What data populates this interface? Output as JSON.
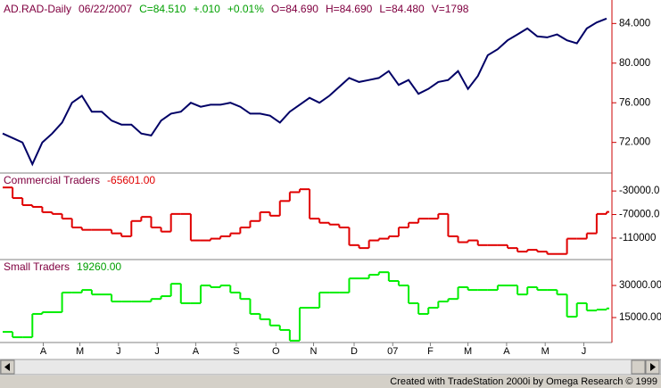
{
  "chart_data": [
    {
      "type": "line",
      "title": "AD.RAD-Daily",
      "color": "#000066",
      "header": [
        {
          "text": "06/22/2007",
          "color": "#800040"
        },
        {
          "text": "C=84.510",
          "color": "#00a000"
        },
        {
          "text": "+.010",
          "color": "#00a000"
        },
        {
          "text": "+0.01%",
          "color": "#00a000"
        },
        {
          "text": "O=84.690",
          "color": "#800040"
        },
        {
          "text": "H=84.690",
          "color": "#800040"
        },
        {
          "text": "L=84.480",
          "color": "#800040"
        },
        {
          "text": "V=1798",
          "color": "#800040"
        }
      ],
      "xlim": [
        0,
        61
      ],
      "values": [
        72.9,
        72.45,
        72.0,
        69.8,
        72.0,
        72.9,
        74.0,
        76.0,
        76.7,
        75.1,
        75.1,
        74.2,
        73.8,
        73.8,
        72.9,
        72.7,
        74.2,
        74.9,
        75.1,
        76.0,
        75.6,
        75.8,
        75.8,
        76.0,
        75.6,
        74.9,
        74.9,
        74.7,
        74.0,
        75.1,
        75.8,
        76.5,
        76.0,
        76.7,
        77.6,
        78.5,
        78.1,
        78.3,
        78.5,
        79.2,
        77.8,
        78.3,
        76.9,
        77.4,
        78.1,
        78.3,
        79.2,
        77.4,
        78.7,
        80.8,
        81.4,
        82.3,
        82.9,
        83.5,
        82.7,
        82.6,
        82.9,
        82.3,
        82.0,
        83.5,
        84.1,
        84.5
      ],
      "ylim": [
        69,
        86.1
      ],
      "yticks": [
        {
          "value": 84,
          "label": "84.000"
        },
        {
          "value": 80,
          "label": "80.000"
        },
        {
          "value": 76,
          "label": "76.000"
        },
        {
          "value": 72,
          "label": "72.000"
        }
      ]
    },
    {
      "type": "step",
      "title": "Commercial Traders",
      "last_value_label": "-65601.00",
      "color": "#e00000",
      "xlim": [
        0,
        61
      ],
      "values": [
        -24000,
        -42000,
        -54000,
        -57000,
        -66000,
        -69000,
        -77000,
        -92000,
        -96000,
        -96000,
        -96000,
        -102000,
        -107000,
        -81000,
        -74000,
        -92000,
        -99000,
        -69000,
        -69000,
        -114000,
        -114000,
        -111000,
        -107000,
        -102000,
        -92000,
        -81000,
        -66000,
        -72000,
        -47000,
        -32000,
        -27000,
        -77000,
        -84000,
        -87000,
        -92000,
        -122000,
        -127000,
        -114000,
        -111000,
        -107000,
        -92000,
        -84000,
        -77000,
        -77000,
        -69000,
        -107000,
        -117000,
        -114000,
        -122000,
        -122000,
        -122000,
        -127000,
        -133000,
        -130000,
        -133000,
        -137000,
        -137000,
        -111000,
        -111000,
        -102000,
        -69000,
        -65601
      ],
      "ylim": [
        -145000,
        -1000
      ],
      "yticks": [
        {
          "value": -30000,
          "label": "-30000.0"
        },
        {
          "value": -70000,
          "label": "-70000.0"
        },
        -110000
      ]
    },
    {
      "type": "step",
      "title": "Small Traders",
      "last_value_label": "19260.00",
      "color": "#00ee00",
      "xlim": [
        0,
        61
      ],
      "xticks": [
        {
          "value": 4.1,
          "label": "A"
        },
        {
          "value": 7.8,
          "label": "M"
        },
        {
          "value": 11.7,
          "label": "J"
        },
        {
          "value": 15.6,
          "label": "J"
        },
        {
          "value": 19.5,
          "label": "A"
        },
        {
          "value": 23.6,
          "label": "S"
        },
        {
          "value": 27.6,
          "label": "O"
        },
        {
          "value": 31.4,
          "label": "N"
        },
        {
          "value": 35.5,
          "label": "D"
        },
        {
          "value": 39.4,
          "label": "07"
        },
        {
          "value": 43.2,
          "label": "F"
        },
        {
          "value": 47.0,
          "label": "M"
        },
        {
          "value": 50.9,
          "label": "A"
        },
        {
          "value": 54.8,
          "label": "M"
        },
        {
          "value": 58.7,
          "label": "J"
        }
      ],
      "values": [
        8300,
        5800,
        5800,
        16700,
        17500,
        17500,
        26700,
        26700,
        27900,
        25800,
        25800,
        22500,
        22500,
        22500,
        22500,
        23700,
        25000,
        30800,
        21700,
        21700,
        30000,
        29200,
        30000,
        26700,
        23700,
        16700,
        14200,
        11300,
        9200,
        4200,
        19600,
        19600,
        26700,
        26700,
        26700,
        33300,
        33300,
        35000,
        36200,
        32100,
        30000,
        21700,
        16700,
        19600,
        22500,
        23700,
        29200,
        27900,
        27900,
        27900,
        30000,
        30000,
        25800,
        29200,
        27900,
        27900,
        25800,
        15400,
        21700,
        18300,
        18700,
        19260
      ],
      "ylim": [
        3750,
        41700
      ],
      "yticks": [
        {
          "value": 30000,
          "label": "30000.00"
        },
        {
          "value": 15000,
          "label": "15000.00"
        }
      ]
    }
  ],
  "footer": "Created with TradeStation 2000i by Omega Research © 1999"
}
